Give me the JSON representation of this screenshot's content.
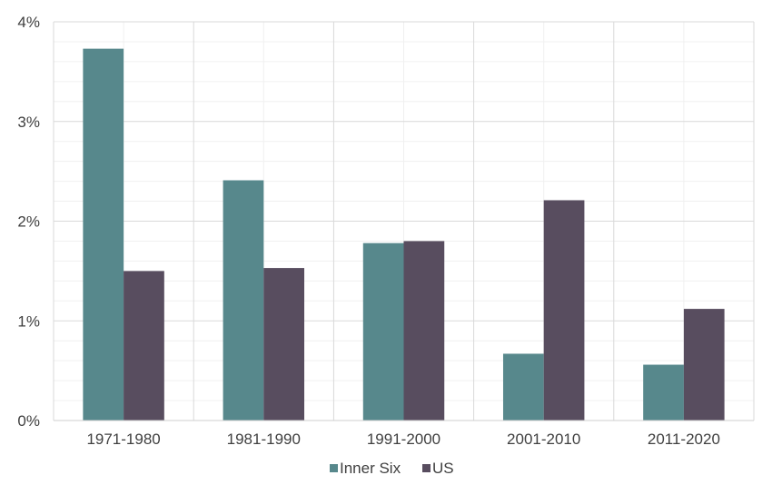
{
  "chart_data": {
    "type": "bar",
    "title": "",
    "xlabel": "",
    "ylabel": "",
    "categories": [
      "1971-1980",
      "1981-1990",
      "1991-2000",
      "2001-2010",
      "2011-2020"
    ],
    "series": [
      {
        "name": "Inner Six",
        "color": "#57888c",
        "values": [
          3.73,
          2.41,
          1.78,
          0.67,
          0.56
        ]
      },
      {
        "name": "US",
        "color": "#584d5f",
        "values": [
          1.5,
          1.53,
          1.8,
          2.21,
          1.12
        ]
      }
    ],
    "ylim": [
      0,
      4
    ],
    "yticks": [
      0,
      1,
      2,
      3,
      4
    ],
    "ytick_labels": [
      "0%",
      "1%",
      "2%",
      "3%",
      "4%"
    ],
    "grid": true,
    "legend_position": "bottom"
  }
}
